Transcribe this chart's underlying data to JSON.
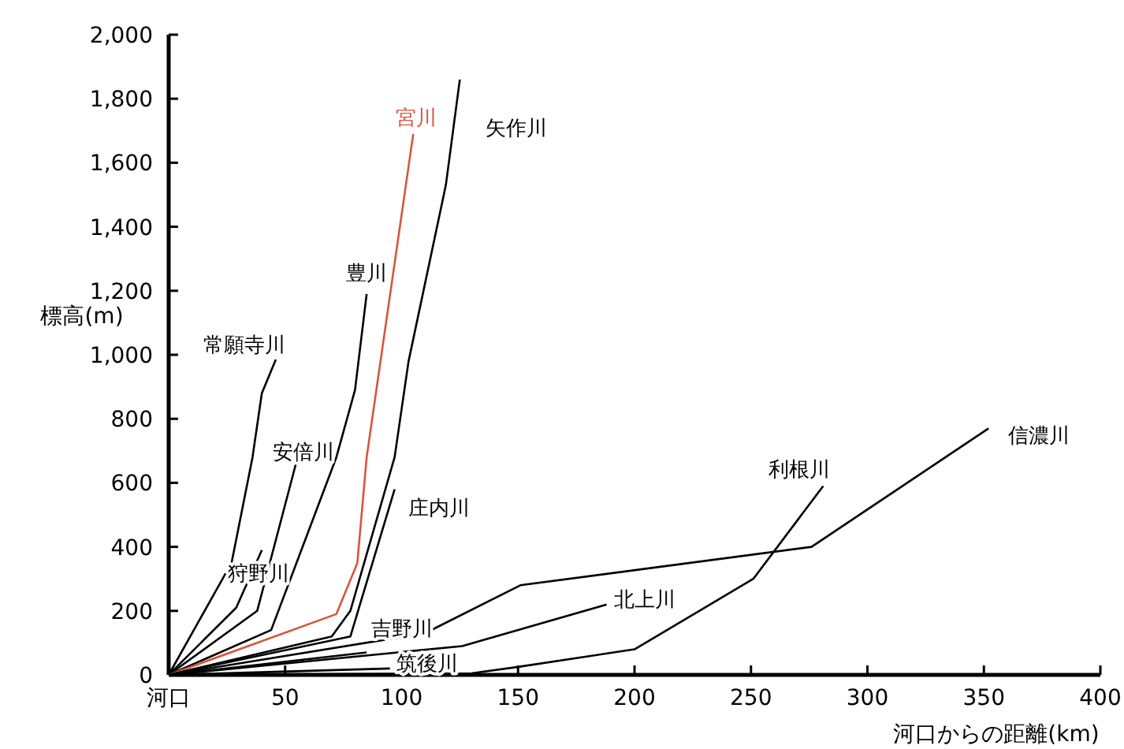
{
  "chart_data": {
    "type": "line",
    "xlabel": "河口からの距離(km)",
    "ylabel": "標高(m)",
    "xlim": [
      0,
      400
    ],
    "xticks": [
      {
        "value": 0,
        "label": "河口"
      },
      50,
      100,
      150,
      200,
      250,
      300,
      350,
      400
    ],
    "ylim": [
      0,
      2000
    ],
    "yticks": [
      0,
      {
        "value": 200,
        "label": "200"
      },
      {
        "value": 400,
        "label": "400"
      },
      {
        "value": 600,
        "label": "600"
      },
      {
        "value": 800,
        "label": "800"
      },
      {
        "value": 1000,
        "label": "1,000"
      },
      {
        "value": 1200,
        "label": "1,200"
      },
      {
        "value": 1400,
        "label": "1,400"
      },
      {
        "value": 1600,
        "label": "1,600"
      },
      {
        "value": 1800,
        "label": "1,800"
      },
      {
        "value": 2000,
        "label": "2,000"
      }
    ],
    "grid": false,
    "series": [
      {
        "name": "常願寺川",
        "color": "#000000",
        "x": [
          0,
          27,
          36,
          40,
          46
        ],
        "values": [
          0,
          350,
          680,
          880,
          985
        ]
      },
      {
        "name": "安倍川",
        "color": "#000000",
        "x": [
          0,
          38,
          55
        ],
        "values": [
          0,
          200,
          670
        ]
      },
      {
        "name": "狩野川",
        "color": "#000000",
        "x": [
          0,
          29,
          40
        ],
        "values": [
          0,
          210,
          390
        ]
      },
      {
        "name": "豊川",
        "color": "#000000",
        "x": [
          0,
          44,
          72,
          80,
          85
        ],
        "values": [
          0,
          140,
          680,
          890,
          1190
        ]
      },
      {
        "name": "宮川",
        "color": "#d9553f",
        "x": [
          0,
          72,
          81,
          85,
          105
        ],
        "values": [
          0,
          190,
          350,
          680,
          1690
        ]
      },
      {
        "name": "矢作川",
        "color": "#000000",
        "x": [
          0,
          70,
          78,
          97,
          103,
          119,
          125
        ],
        "values": [
          0,
          120,
          200,
          680,
          980,
          1530,
          1860
        ]
      },
      {
        "name": "庄内川",
        "color": "#000000",
        "x": [
          0,
          78,
          97
        ],
        "values": [
          0,
          120,
          580
        ]
      },
      {
        "name": "吉野川",
        "color": "#000000",
        "x": [
          0,
          85
        ],
        "values": [
          0,
          70
        ]
      },
      {
        "name": "筑後川",
        "color": "#000000",
        "x": [
          0,
          95
        ],
        "values": [
          0,
          20
        ]
      },
      {
        "name": "北上川",
        "color": "#000000",
        "x": [
          0,
          126,
          188
        ],
        "values": [
          0,
          90,
          220
        ]
      },
      {
        "name": "利根川",
        "color": "#000000",
        "x": [
          0,
          130,
          150,
          200,
          251,
          281
        ],
        "values": [
          0,
          5,
          25,
          80,
          300,
          590
        ]
      },
      {
        "name": "信濃川",
        "color": "#000000",
        "x": [
          0,
          110,
          151,
          276,
          352
        ],
        "values": [
          0,
          130,
          280,
          400,
          770
        ]
      }
    ]
  }
}
